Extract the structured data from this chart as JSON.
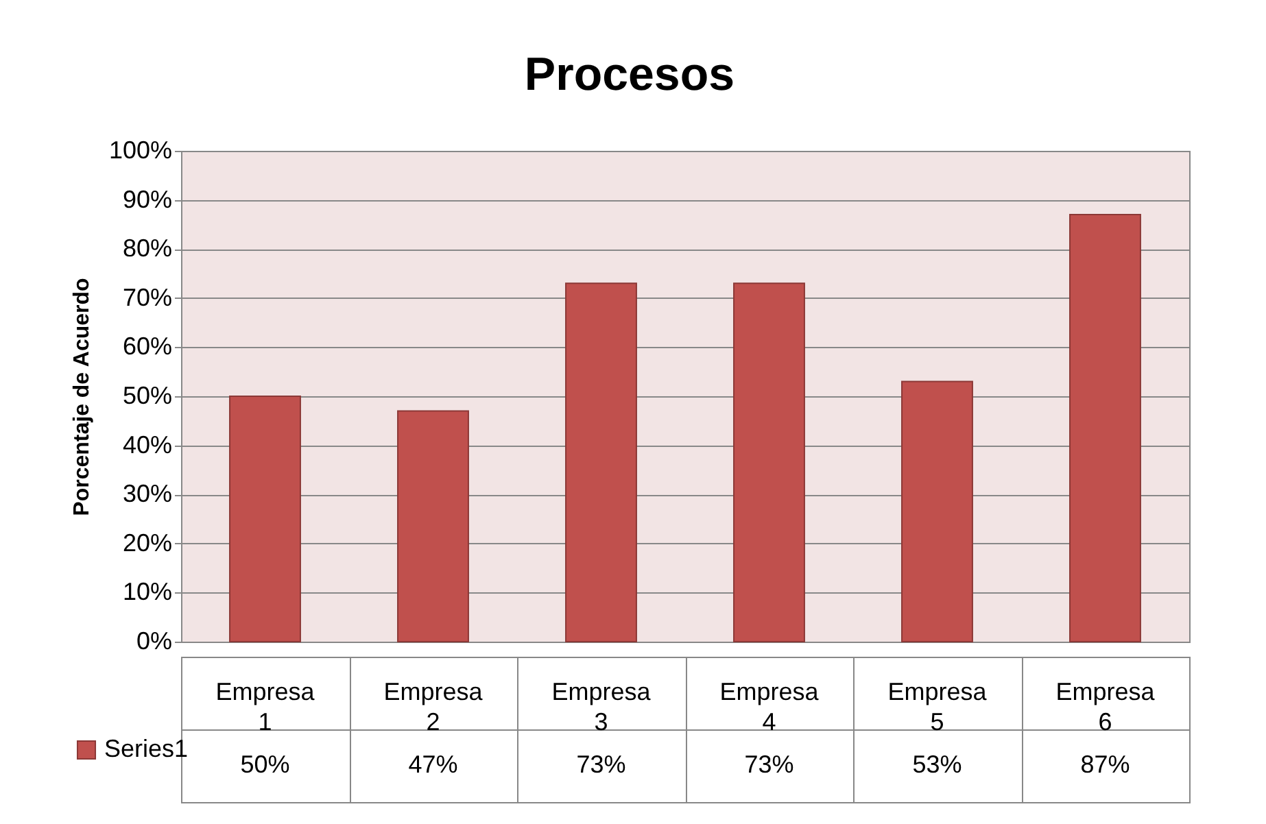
{
  "chart_data": {
    "type": "bar",
    "title": "Procesos",
    "ylabel": "Porcentaje de Acuerdo",
    "categories": [
      "Empresa 1",
      "Empresa 2",
      "Empresa 3",
      "Empresa 4",
      "Empresa 5",
      "Empresa 6"
    ],
    "series": [
      {
        "name": "Series1",
        "color": "#c0504d",
        "values": [
          50,
          47,
          73,
          73,
          53,
          87
        ],
        "value_labels": [
          "50%",
          "47%",
          "73%",
          "73%",
          "53%",
          "87%"
        ]
      }
    ],
    "ylim": [
      0,
      100
    ],
    "yticks": [
      {
        "value": 0,
        "label": "0%"
      },
      {
        "value": 10,
        "label": "10%"
      },
      {
        "value": 20,
        "label": "20%"
      },
      {
        "value": 30,
        "label": "30%"
      },
      {
        "value": 40,
        "label": "40%"
      },
      {
        "value": 50,
        "label": "50%"
      },
      {
        "value": 60,
        "label": "60%"
      },
      {
        "value": 70,
        "label": "70%"
      },
      {
        "value": 80,
        "label": "80%"
      },
      {
        "value": 90,
        "label": "90%"
      },
      {
        "value": 100,
        "label": "100%"
      }
    ],
    "grid": "y",
    "legend": "bottom left"
  }
}
